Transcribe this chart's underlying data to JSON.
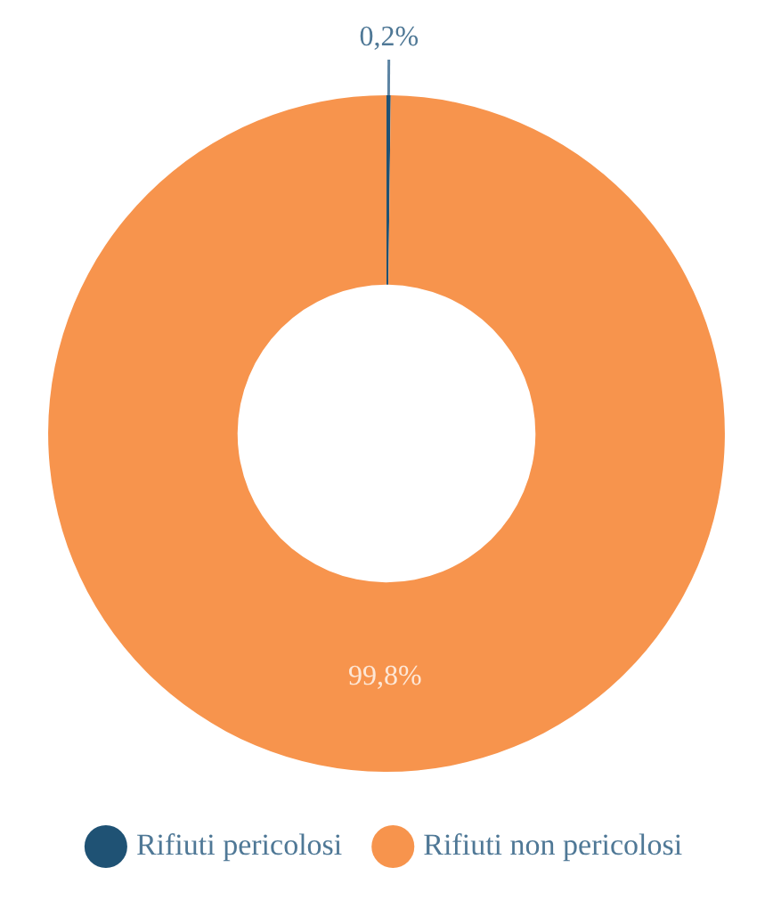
{
  "chart_data": {
    "type": "donut",
    "categories": [
      "Rifiuti pericolosi",
      "Rifiuti non pericolosi"
    ],
    "values": [
      0.2,
      99.8
    ],
    "colors": [
      "#1f5274",
      "#f7944d"
    ],
    "value_labels": [
      "0,2%",
      "99,8%"
    ],
    "legend": "bottom"
  }
}
